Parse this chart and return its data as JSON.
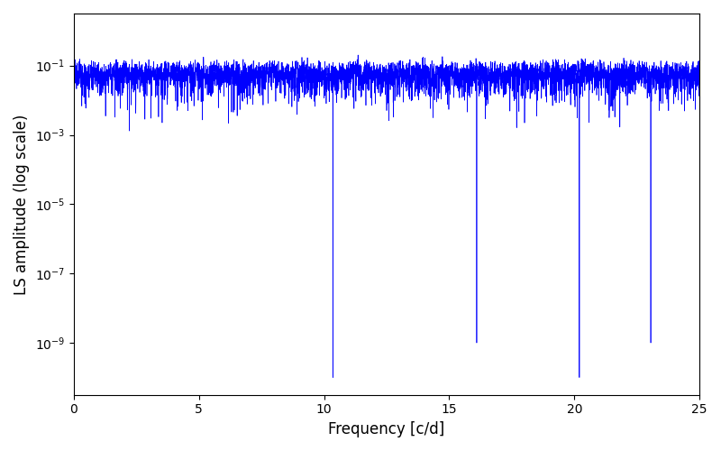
{
  "xlabel": "Frequency [c/d]",
  "ylabel": "LS amplitude (log scale)",
  "line_color": "#0000ff",
  "xlim": [
    0,
    25
  ],
  "ylim_log_min": -10.5,
  "ylim_log_max": 0.5,
  "figsize": [
    8.0,
    5.0
  ],
  "dpi": 100,
  "freq_max": 25.0,
  "n_points": 5000,
  "seed": 1234,
  "linewidth": 0.5
}
